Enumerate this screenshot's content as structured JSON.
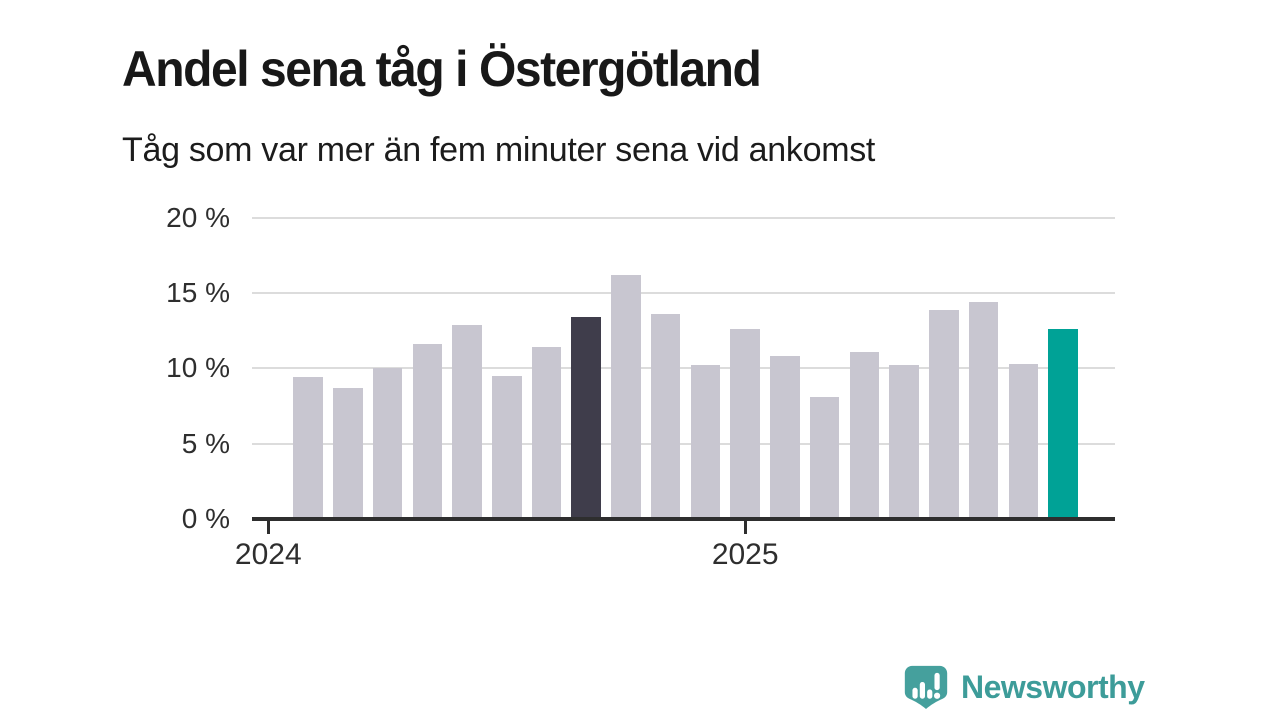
{
  "header": {
    "title": "Andel sena tåg i Östergötland",
    "subtitle": "Tåg som var mer än fem minuter sena vid ankomst"
  },
  "chart_data": {
    "type": "bar",
    "title": "Andel sena tåg i Östergötland",
    "subtitle": "Tåg som var mer än fem minuter sena vid ankomst",
    "unit": "%",
    "x": [
      "2024-02",
      "2024-03",
      "2024-04",
      "2024-05",
      "2024-06",
      "2024-07",
      "2024-08",
      "2024-09",
      "2024-10",
      "2024-11",
      "2024-12",
      "2025-01",
      "2025-02",
      "2025-03",
      "2025-04",
      "2025-05",
      "2025-06",
      "2025-07",
      "2025-08",
      "2025-09"
    ],
    "values": [
      9.4,
      8.7,
      10.0,
      11.6,
      12.9,
      9.5,
      11.4,
      13.4,
      16.2,
      13.6,
      10.2,
      12.6,
      10.8,
      8.1,
      11.1,
      10.2,
      13.9,
      14.4,
      10.3,
      12.6
    ],
    "highlighted_bars": {
      "7": "#3F3D4B",
      "19": "#00A296"
    },
    "ylim": [
      0,
      20.5
    ],
    "grid": true,
    "legend": "none",
    "y_axis": {
      "ticks": [
        {
          "value": 0,
          "label": "0 %"
        },
        {
          "value": 5,
          "label": "5 %"
        },
        {
          "value": 10,
          "label": "10 %"
        },
        {
          "value": 15,
          "label": "15 %"
        },
        {
          "value": 20,
          "label": "20 %"
        }
      ]
    },
    "x_axis": {
      "ticks": [
        {
          "label": "2024",
          "slot": -1
        },
        {
          "label": "2025",
          "slot": 11
        }
      ]
    },
    "colors": {
      "bar_default": "#C8C6D0",
      "bar_highlight_dark": "#3F3D4B",
      "bar_highlight_latest": "#00A296",
      "grid": "#DCDCDC",
      "axis": "#2E2E2E",
      "text": "#181818"
    }
  },
  "footer": {
    "brand": "Newsworthy",
    "logo_icon": "newsworthy-pin-barchart-icon",
    "brand_color": "#3D9C99"
  }
}
